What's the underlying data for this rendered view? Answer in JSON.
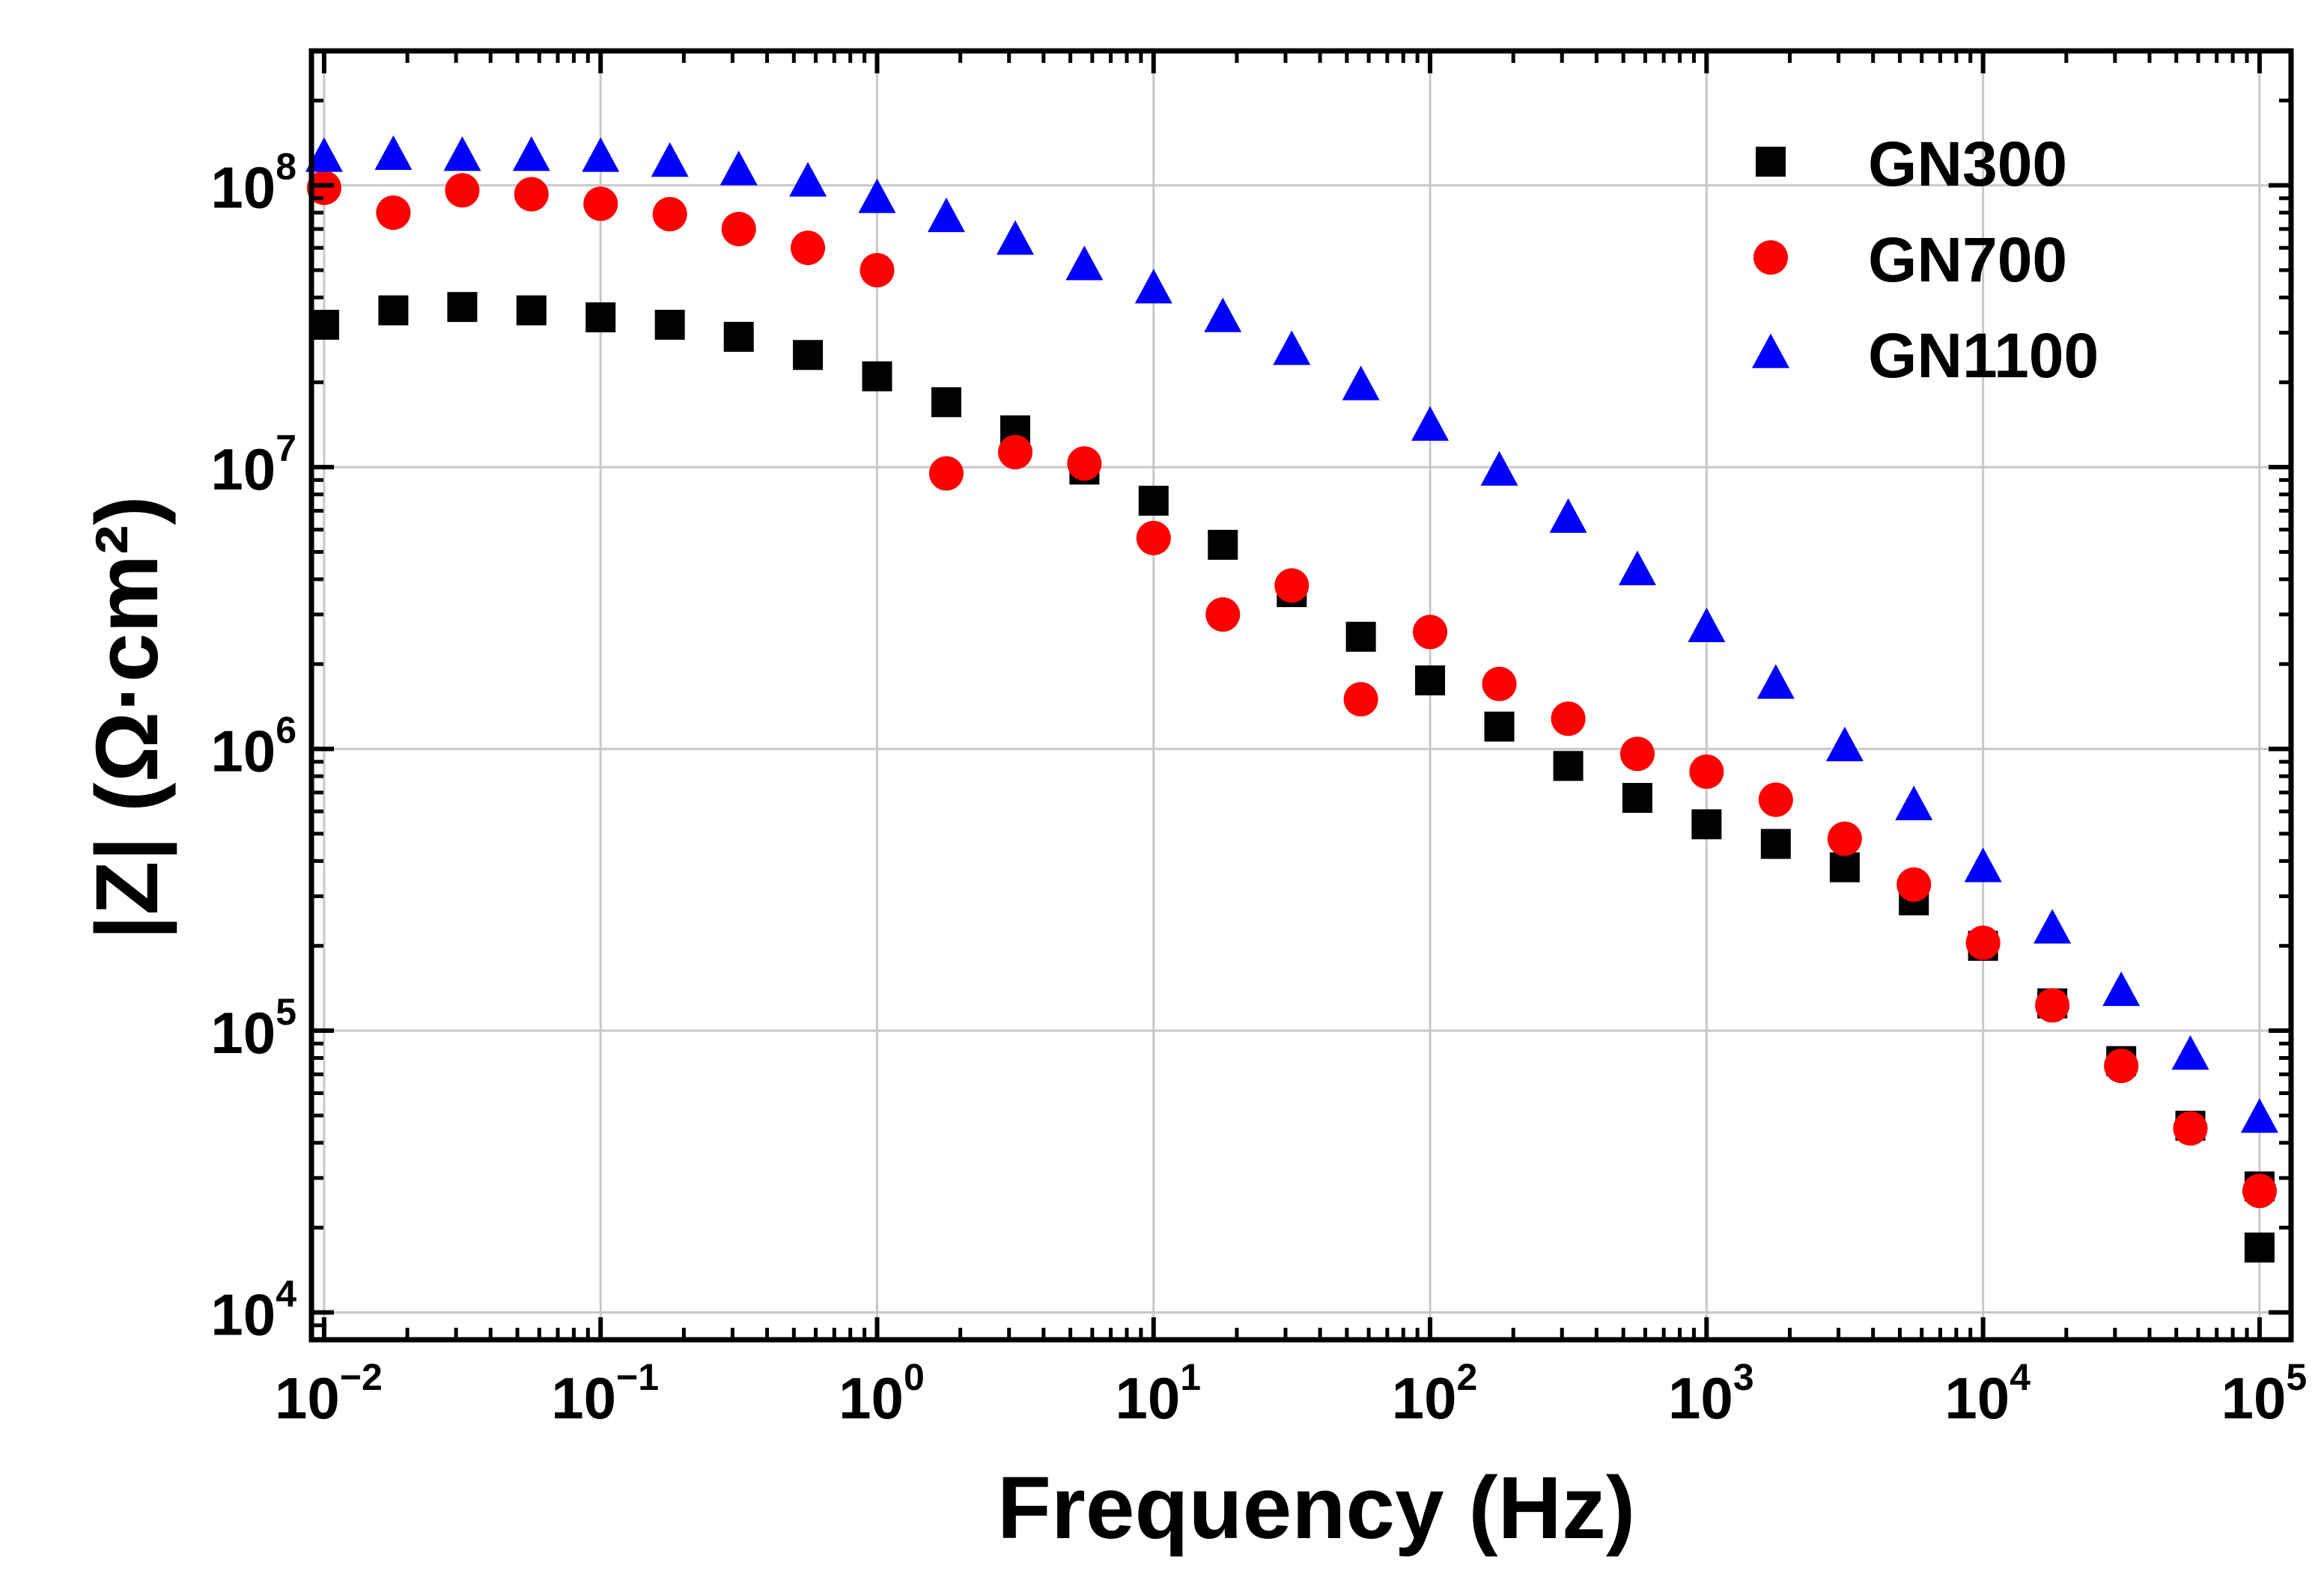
{
  "chart_data": {
    "type": "scatter",
    "xscale": "log",
    "yscale": "log",
    "xlabel": "Frequency (Hz)",
    "ylabel": "|Z| (Ω·cm²)",
    "xlim": [
      0.009,
      130000
    ],
    "ylim": [
      8000,
      300000000
    ],
    "grid": true,
    "legend_position": "top-right",
    "x_ticks": [
      {
        "value": 0.01,
        "base": "10",
        "exp": "−2"
      },
      {
        "value": 0.1,
        "base": "10",
        "exp": "−1"
      },
      {
        "value": 1,
        "base": "10",
        "exp": "0"
      },
      {
        "value": 10,
        "base": "10",
        "exp": "1"
      },
      {
        "value": 100,
        "base": "10",
        "exp": "2"
      },
      {
        "value": 1000,
        "base": "10",
        "exp": "3"
      },
      {
        "value": 10000,
        "base": "10",
        "exp": "4"
      },
      {
        "value": 100000,
        "base": "10",
        "exp": "5"
      }
    ],
    "y_ticks": [
      {
        "value": 10000,
        "base": "10",
        "exp": "4"
      },
      {
        "value": 100000,
        "base": "10",
        "exp": "5"
      },
      {
        "value": 1000000,
        "base": "10",
        "exp": "6"
      },
      {
        "value": 10000000,
        "base": "10",
        "exp": "7"
      },
      {
        "value": 100000000,
        "base": "10",
        "exp": "8"
      }
    ],
    "x": [
      0.01,
      0.0178,
      0.0316,
      0.0562,
      0.1,
      0.178,
      0.316,
      0.562,
      1.0,
      1.78,
      3.16,
      5.62,
      10,
      17.8,
      31.6,
      56.2,
      100,
      178,
      316,
      562,
      1000,
      1780,
      3160,
      5620,
      10000,
      17800,
      31600,
      56200,
      100000
    ],
    "series": [
      {
        "name": "GN300",
        "marker": "square",
        "color": "#000000",
        "values": [
          32000000,
          36000000,
          37000000,
          36000000,
          34000000,
          32000000,
          29000000,
          25000000,
          21000000,
          17000000,
          13500000,
          9800000,
          7600000,
          5300000,
          3600000,
          2500000,
          1750000,
          1200000,
          870000,
          670000,
          540000,
          460000,
          380000,
          290000,
          200000,
          125000,
          78000,
          46000,
          28000
        ]
      },
      {
        "name": "GN700",
        "marker": "circle",
        "color": "#ff0000",
        "values": [
          98000000,
          80000000,
          96000000,
          93000000,
          86000000,
          79000000,
          70000000,
          60000000,
          50000000,
          9500000,
          11300000,
          10300000,
          5600000,
          3000000,
          3800000,
          1500000,
          2600000,
          1700000,
          1280000,
          960000,
          830000,
          660000,
          480000,
          330000,
          205000,
          123000,
          75000,
          45000,
          27000
        ]
      },
      {
        "name": "GN1100",
        "marker": "triangle",
        "color": "#0000ff",
        "values": [
          126000000,
          128000000,
          127000000,
          127000000,
          126000000,
          121000000,
          113000000,
          103000000,
          90000000,
          77000000,
          64000000,
          52000000,
          43000000,
          34000000,
          26000000,
          19500000,
          14000000,
          9700000,
          6600000,
          4300000,
          2700000,
          1700000,
          1020000,
          630000,
          380000,
          230000,
          138000,
          82000,
          49000
        ]
      }
    ],
    "extra_points": [
      {
        "series": "GN300",
        "x": 100000,
        "y": 17000
      }
    ]
  }
}
